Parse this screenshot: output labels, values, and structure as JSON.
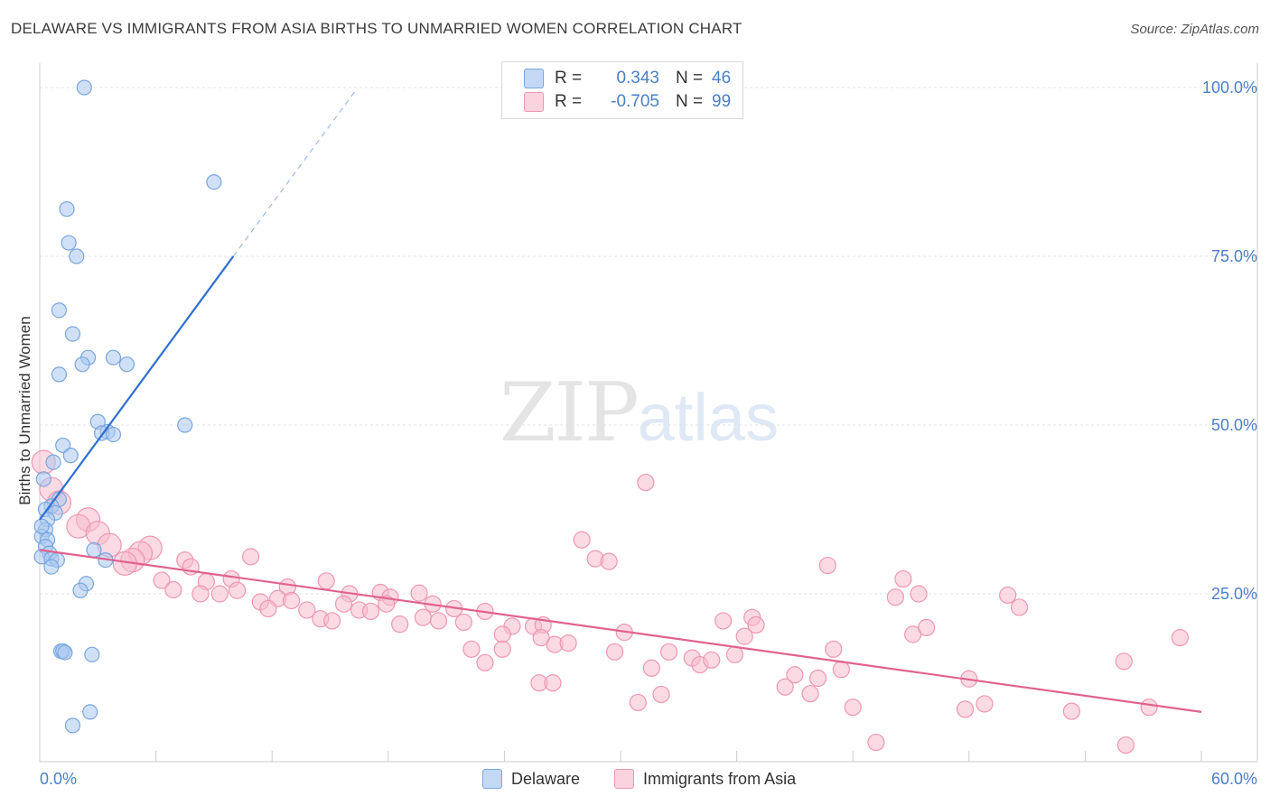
{
  "header": {
    "title": "DELAWARE VS IMMIGRANTS FROM ASIA BIRTHS TO UNMARRIED WOMEN CORRELATION CHART",
    "source": "Source: ZipAtlas.com"
  },
  "watermark": {
    "zip": "ZIP",
    "atlas": "atlas"
  },
  "legend": {
    "rows": [
      {
        "r_label": "R =",
        "r_value": "0.343",
        "n_label": "N =",
        "n_value": "46"
      },
      {
        "r_label": "R =",
        "r_value": "-0.705",
        "n_label": "N =",
        "n_value": "99"
      }
    ]
  },
  "colors": {
    "delaware_fill": "#a9c8f0",
    "delaware_stroke": "#7aa6de",
    "delaware_line": "#2f6fd0",
    "asia_fill": "#f7bccd",
    "asia_stroke": "#ee97b2",
    "asia_line": "#e0628e",
    "tick_label": "#4a7fc7"
  },
  "chart_data": {
    "type": "scatter",
    "title": "DELAWARE VS IMMIGRANTS FROM ASIA BIRTHS TO UNMARRIED WOMEN CORRELATION CHART",
    "xlabel": "",
    "ylabel": "Births to Unmarried Women",
    "xlim": [
      0,
      60
    ],
    "ylim": [
      0,
      105
    ],
    "x_tick_labels": [
      "0.0%",
      "60.0%"
    ],
    "y_tick_values": [
      25,
      50,
      75,
      100
    ],
    "y_tick_labels": [
      "25.0%",
      "50.0%",
      "75.0%",
      "100.0%"
    ],
    "grid": true,
    "series": [
      {
        "name": "Delaware",
        "r": 0.343,
        "n": 46,
        "trend": {
          "x_start": 0,
          "y_start": 36,
          "x_solid_end": 10,
          "y_solid_end": 75,
          "x_dash_end": 16.3,
          "y_dash_end": 99.5
        },
        "points": [
          [
            2.3,
            100
          ],
          [
            9.0,
            86
          ],
          [
            1.4,
            82
          ],
          [
            1.5,
            77
          ],
          [
            1.9,
            75
          ],
          [
            1.0,
            67
          ],
          [
            1.7,
            63.5
          ],
          [
            2.5,
            60
          ],
          [
            3.8,
            60
          ],
          [
            2.2,
            59
          ],
          [
            4.5,
            59
          ],
          [
            1.0,
            57.5
          ],
          [
            3.0,
            50.5
          ],
          [
            7.5,
            50
          ],
          [
            3.5,
            49
          ],
          [
            3.2,
            48.8
          ],
          [
            3.8,
            48.6
          ],
          [
            1.2,
            47
          ],
          [
            1.6,
            45.5
          ],
          [
            0.7,
            44.5
          ],
          [
            0.2,
            42
          ],
          [
            1.0,
            39
          ],
          [
            0.6,
            38
          ],
          [
            0.3,
            37.5
          ],
          [
            0.8,
            37
          ],
          [
            0.4,
            36
          ],
          [
            0.3,
            34.5
          ],
          [
            0.1,
            33.5
          ],
          [
            0.4,
            33
          ],
          [
            0.3,
            32
          ],
          [
            0.5,
            31
          ],
          [
            0.1,
            30.5
          ],
          [
            0.6,
            30.2
          ],
          [
            0.9,
            30
          ],
          [
            2.8,
            31.5
          ],
          [
            3.4,
            30
          ],
          [
            0.6,
            29
          ],
          [
            2.4,
            26.5
          ],
          [
            2.1,
            25.5
          ],
          [
            1.1,
            16.5
          ],
          [
            1.2,
            16.5
          ],
          [
            1.3,
            16.3
          ],
          [
            2.7,
            16
          ],
          [
            2.6,
            7.5
          ],
          [
            1.7,
            5.5
          ],
          [
            0.1,
            35
          ]
        ]
      },
      {
        "name": "Immigrants from Asia",
        "r": -0.705,
        "n": 99,
        "trend": {
          "x_start": 0,
          "y_start": 31.5,
          "x_end": 60,
          "y_end": 7.5
        },
        "points": [
          [
            0.2,
            44.5
          ],
          [
            0.6,
            40.5
          ],
          [
            1.0,
            38.5
          ],
          [
            2.5,
            36
          ],
          [
            2.0,
            35
          ],
          [
            3.0,
            34
          ],
          [
            3.6,
            32.2
          ],
          [
            5.7,
            31.8
          ],
          [
            5.2,
            31
          ],
          [
            4.8,
            30
          ],
          [
            10.9,
            30.5
          ],
          [
            7.5,
            30
          ],
          [
            4.4,
            29.5
          ],
          [
            7.8,
            29
          ],
          [
            6.3,
            27
          ],
          [
            8.6,
            26.8
          ],
          [
            9.9,
            27.2
          ],
          [
            14.8,
            26.9
          ],
          [
            12.8,
            26
          ],
          [
            6.9,
            25.6
          ],
          [
            10.2,
            25.5
          ],
          [
            8.3,
            25
          ],
          [
            9.3,
            25
          ],
          [
            12.3,
            24.3
          ],
          [
            16.0,
            25
          ],
          [
            17.6,
            25.2
          ],
          [
            19.6,
            25.1
          ],
          [
            18.1,
            24.5
          ],
          [
            11.4,
            23.8
          ],
          [
            13.0,
            24
          ],
          [
            15.7,
            23.5
          ],
          [
            17.9,
            23.5
          ],
          [
            20.3,
            23.5
          ],
          [
            11.8,
            22.8
          ],
          [
            13.8,
            22.6
          ],
          [
            16.5,
            22.6
          ],
          [
            17.1,
            22.4
          ],
          [
            21.4,
            22.8
          ],
          [
            23.0,
            22.4
          ],
          [
            14.5,
            21.3
          ],
          [
            15.1,
            21
          ],
          [
            19.8,
            21.5
          ],
          [
            18.6,
            20.5
          ],
          [
            20.6,
            21
          ],
          [
            21.9,
            20.8
          ],
          [
            24.4,
            20.2
          ],
          [
            25.5,
            20.2
          ],
          [
            26.0,
            20.4
          ],
          [
            23.9,
            19
          ],
          [
            25.9,
            18.5
          ],
          [
            30.2,
            19.3
          ],
          [
            26.6,
            17.5
          ],
          [
            27.3,
            17.7
          ],
          [
            22.3,
            16.8
          ],
          [
            23.9,
            16.8
          ],
          [
            29.7,
            16.4
          ],
          [
            32.5,
            16.4
          ],
          [
            33.7,
            15.5
          ],
          [
            35.9,
            16
          ],
          [
            36.4,
            18.7
          ],
          [
            41.0,
            16.8
          ],
          [
            39.0,
            13
          ],
          [
            34.1,
            14.5
          ],
          [
            31.6,
            14
          ],
          [
            23.0,
            14.8
          ],
          [
            25.8,
            11.8
          ],
          [
            35.3,
            21
          ],
          [
            36.8,
            21.5
          ],
          [
            37.0,
            20.4
          ],
          [
            34.7,
            15.2
          ],
          [
            38.5,
            11.2
          ],
          [
            39.8,
            10.2
          ],
          [
            41.4,
            13.8
          ],
          [
            42.0,
            8.2
          ],
          [
            40.2,
            12.5
          ],
          [
            44.2,
            24.5
          ],
          [
            44.6,
            27.2
          ],
          [
            45.4,
            25
          ],
          [
            45.1,
            19
          ],
          [
            45.8,
            20
          ],
          [
            48.0,
            12.4
          ],
          [
            47.8,
            7.9
          ],
          [
            48.8,
            8.7
          ],
          [
            50.0,
            24.8
          ],
          [
            50.6,
            23
          ],
          [
            53.3,
            7.6
          ],
          [
            56.0,
            15
          ],
          [
            56.1,
            2.6
          ],
          [
            57.3,
            8.2
          ],
          [
            58.9,
            18.5
          ],
          [
            43.2,
            3
          ],
          [
            31.3,
            41.5
          ],
          [
            28.0,
            33
          ],
          [
            28.7,
            30.2
          ],
          [
            29.4,
            29.8
          ],
          [
            40.7,
            29.2
          ],
          [
            26.5,
            11.8
          ],
          [
            30.9,
            8.9
          ],
          [
            32.1,
            10.1
          ]
        ]
      }
    ]
  },
  "y_axis_label": "Births to Unmarried Women",
  "bottom_legend": {
    "items": [
      "Delaware",
      "Immigrants from Asia"
    ]
  }
}
